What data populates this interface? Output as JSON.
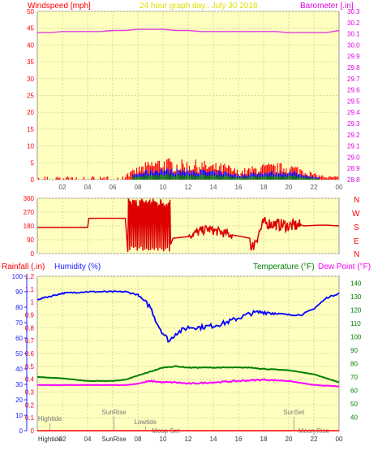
{
  "colors": {
    "plot_bg": "#ffffc0",
    "grid": "#d8d8a0",
    "wind_speed": "#ff0000",
    "wind_dir": "#dd0000",
    "gust_green": "#008000",
    "gust_blue": "#0000ff",
    "barometer": "#e040e0",
    "humidity": "#0000ff",
    "temperature": "#008000",
    "dew_point": "#ff00ff",
    "rain": "#ff0000",
    "axis_red": "#ff0000",
    "axis_magenta": "#dd00dd",
    "axis_blue": "#2020ff",
    "axis_green": "#008000",
    "title": "#e0e000"
  },
  "top_panel": {
    "left_label": "Windspeed [mph]",
    "title": "24 hour graph day.. July 30 2018",
    "right_label": "Barometer [.in]"
  },
  "dir_panel": {
    "compass": [
      "N",
      "W",
      "S",
      "E",
      "N"
    ]
  },
  "bottom_panel": {
    "rain_label": "Rainfall (.in)",
    "humidity_label": "Humidity (%)",
    "temp_label": "Temperature (°F)",
    "dew_label": "Dew Point (°F)",
    "events": [
      {
        "label": "Hightide",
        "hour": 1.0,
        "level": "high"
      },
      {
        "label": "SunRise",
        "hour": 6.1,
        "level": "top"
      },
      {
        "label": "Lowtide",
        "hour": 8.6,
        "level": "mid"
      },
      {
        "label": "Moon Set",
        "hour": 10.2,
        "level": "low"
      },
      {
        "label": "SunSet",
        "hour": 20.4,
        "level": "top"
      },
      {
        "label": "Moon Rise",
        "hour": 22.0,
        "level": "low"
      }
    ],
    "bottom_ticks": [
      "Hightide",
      "02",
      "04",
      "SunRise",
      "08",
      "10",
      "12",
      "14",
      "16",
      "18",
      "20",
      "22",
      "00"
    ]
  },
  "chart_data": [
    {
      "type": "line",
      "name": "wind-barometer",
      "title": "24 hour graph day.. July 30 2018",
      "x_ticks": [
        "02",
        "04",
        "06",
        "08",
        "10",
        "12",
        "14",
        "16",
        "18",
        "20",
        "22",
        "00"
      ],
      "y_left": {
        "label": "Windspeed [mph]",
        "range": [
          0,
          50
        ],
        "ticks": [
          0,
          5,
          10,
          15,
          20,
          25,
          30,
          35,
          40,
          45,
          50
        ]
      },
      "y_right": {
        "label": "Barometer [.in]",
        "range": [
          28.8,
          30.3
        ],
        "ticks": [
          28.8,
          28.9,
          29.0,
          29.1,
          29.2,
          29.3,
          29.4,
          29.5,
          29.6,
          29.7,
          29.8,
          29.9,
          30.0,
          30.1,
          30.2,
          30.3
        ]
      },
      "series": [
        {
          "name": "Barometer",
          "x": [
            0,
            1,
            2,
            3,
            4,
            5,
            6,
            7,
            8,
            9,
            10,
            11,
            12,
            13,
            14,
            15,
            16,
            17,
            18,
            19,
            20,
            21,
            22,
            23,
            24
          ],
          "values": [
            30.11,
            30.11,
            30.12,
            30.12,
            30.12,
            30.12,
            30.13,
            30.13,
            30.14,
            30.14,
            30.14,
            30.13,
            30.13,
            30.12,
            30.12,
            30.12,
            30.12,
            30.12,
            30.12,
            30.12,
            30.11,
            30.11,
            30.11,
            30.11,
            30.13
          ]
        },
        {
          "name": "Wind speed (peak envelope)",
          "x": [
            0,
            1,
            2,
            3,
            4,
            5,
            6,
            7,
            8,
            9,
            10,
            11,
            12,
            13,
            14,
            15,
            16,
            17,
            18,
            19,
            20,
            21,
            22,
            23,
            24
          ],
          "values": [
            1,
            1,
            1,
            1,
            1,
            1,
            1,
            1.5,
            4,
            6,
            7,
            6,
            6,
            6,
            5,
            5,
            3,
            4,
            5,
            5,
            5,
            4,
            2,
            1,
            1
          ]
        }
      ]
    },
    {
      "type": "line",
      "name": "wind-direction",
      "x_ticks": [],
      "y": {
        "range": [
          0,
          360
        ],
        "ticks": [
          0,
          90,
          180,
          270,
          360
        ]
      },
      "series": [
        {
          "name": "Wind direction",
          "x": [
            0,
            4,
            4.1,
            7,
            7.2,
            7.8,
            8.2,
            9.0,
            9.6,
            10.5,
            10.8,
            12,
            12.1,
            13.5,
            14,
            15,
            15.6,
            16.9,
            17,
            18.0,
            19,
            20,
            21,
            21.2,
            22.5,
            23,
            24
          ],
          "values": [
            170,
            170,
            230,
            230,
            10,
            10,
            350,
            20,
            330,
            40,
            100,
            110,
            120,
            160,
            150,
            130,
            120,
            100,
            20,
            200,
            190,
            180,
            185,
            180,
            185,
            185,
            180
          ]
        }
      ]
    },
    {
      "type": "line",
      "name": "humidity-temperature",
      "x_ticks": [
        "02",
        "04",
        "08",
        "10",
        "12",
        "14",
        "16",
        "18",
        "20",
        "22",
        "00"
      ],
      "y_left": {
        "label": "Rainfall (.in)",
        "range": [
          0,
          1.2
        ],
        "ticks": [
          0,
          0.1,
          0.2,
          0.3,
          0.4,
          0.5,
          0.6,
          0.7,
          0.8,
          0.9,
          1,
          1.1,
          1.2
        ]
      },
      "y_humidity": {
        "label": "Humidity (%)",
        "range": [
          0,
          100
        ],
        "ticks": [
          0,
          10,
          20,
          30,
          40,
          50,
          60,
          70,
          80,
          90,
          100
        ]
      },
      "y_right": {
        "label": "Temperature (°F)",
        "range": [
          30,
          145
        ],
        "ticks": [
          40,
          50,
          60,
          70,
          80,
          90,
          100,
          110,
          120,
          130,
          140
        ]
      },
      "series": [
        {
          "name": "Humidity (%)",
          "x": [
            0,
            1,
            2,
            4,
            6,
            7,
            8,
            9,
            9.5,
            10,
            10.5,
            11,
            12,
            13,
            14,
            15,
            16,
            17,
            18,
            19,
            20,
            21,
            22,
            23,
            24
          ],
          "values": [
            85,
            87,
            89,
            90,
            90,
            90,
            88,
            80,
            70,
            63,
            58,
            63,
            67,
            67,
            68,
            70,
            73,
            76,
            77,
            76,
            75,
            75,
            79,
            86,
            89
          ]
        },
        {
          "name": "Temperature (°F)",
          "x": [
            0,
            2,
            4,
            6,
            7,
            8,
            9,
            10,
            11,
            12,
            14,
            16,
            17,
            18,
            20,
            22,
            24
          ],
          "values": [
            70,
            69,
            67,
            67,
            68,
            71,
            74,
            77,
            78,
            77,
            77,
            77,
            77,
            76,
            75,
            72,
            66
          ]
        },
        {
          "name": "Dew Point (°F)",
          "x": [
            0,
            2,
            4,
            6,
            7,
            8,
            9,
            10,
            11,
            12,
            14,
            16,
            18,
            20,
            22,
            24
          ],
          "values": [
            64,
            64,
            64,
            64,
            64,
            65,
            67,
            66,
            66,
            65,
            66,
            67,
            68,
            67,
            64,
            63
          ]
        },
        {
          "name": "Rainfall (.in)",
          "x": [
            0,
            24
          ],
          "values": [
            0,
            0
          ]
        }
      ]
    }
  ]
}
